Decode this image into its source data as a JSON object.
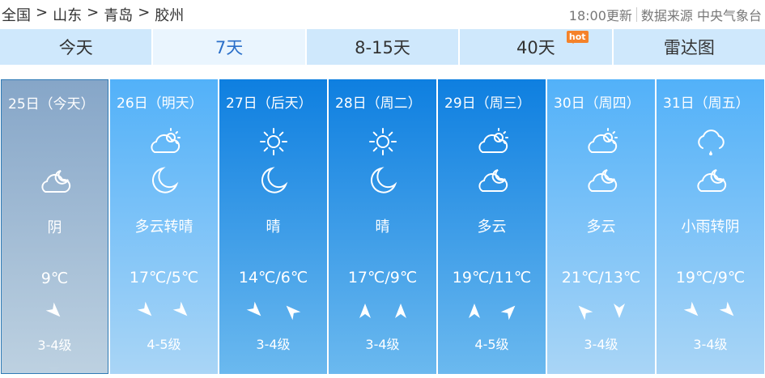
{
  "breadcrumb": [
    "全国",
    "山东",
    "青岛",
    "胶州"
  ],
  "breadcrumb_sep": ">",
  "update": "18:00更新",
  "source": "数据来源 中央气象台",
  "tabs": [
    {
      "label": "今天"
    },
    {
      "label": "7天",
      "active": true
    },
    {
      "label": "8-15天"
    },
    {
      "label": "40天",
      "badge": "hot"
    },
    {
      "label": "雷达图"
    }
  ],
  "colors": {
    "today": "#86a6c8",
    "light": "#52b1f9",
    "dark": "#0e7fe0",
    "tab": "#cfe8fc",
    "hot": "#f5822a"
  },
  "days": [
    {
      "date": "25日（今天）",
      "style": "today",
      "day_icon": null,
      "night_icon": "cloud-moon",
      "weather": "阴",
      "temp": "9℃",
      "winds": [
        135
      ],
      "level": "3-4级"
    },
    {
      "date": "26日（明天）",
      "style": "light",
      "day_icon": "cloud-sun",
      "night_icon": "moon",
      "weather": "多云转晴",
      "temp": "17℃/5℃",
      "winds": [
        135,
        135
      ],
      "level": "4-5级"
    },
    {
      "date": "27日（后天）",
      "style": "dark",
      "day_icon": "sun",
      "night_icon": "moon",
      "weather": "晴",
      "temp": "14℃/6℃",
      "winds": [
        135,
        -45
      ],
      "level": "3-4级"
    },
    {
      "date": "28日（周二）",
      "style": "dark",
      "day_icon": "sun",
      "night_icon": "moon",
      "weather": "晴",
      "temp": "17℃/9℃",
      "winds": [
        0,
        0
      ],
      "level": "3-4级"
    },
    {
      "date": "29日（周三）",
      "style": "dark",
      "day_icon": "cloud-sun",
      "night_icon": "cloud-moon",
      "weather": "多云",
      "temp": "19℃/11℃",
      "winds": [
        0,
        45
      ],
      "level": "4-5级"
    },
    {
      "date": "30日（周四）",
      "style": "light",
      "day_icon": "cloud-sun",
      "night_icon": "cloud-moon",
      "weather": "多云",
      "temp": "21℃/13℃",
      "winds": [
        -45,
        180
      ],
      "level": "3-4级"
    },
    {
      "date": "31日（周五）",
      "style": "light",
      "day_icon": "rain-cloud",
      "night_icon": "cloud-moon",
      "weather": "小雨转阴",
      "temp": "19℃/9℃",
      "winds": [
        135,
        135
      ],
      "level": "3-4级"
    }
  ]
}
